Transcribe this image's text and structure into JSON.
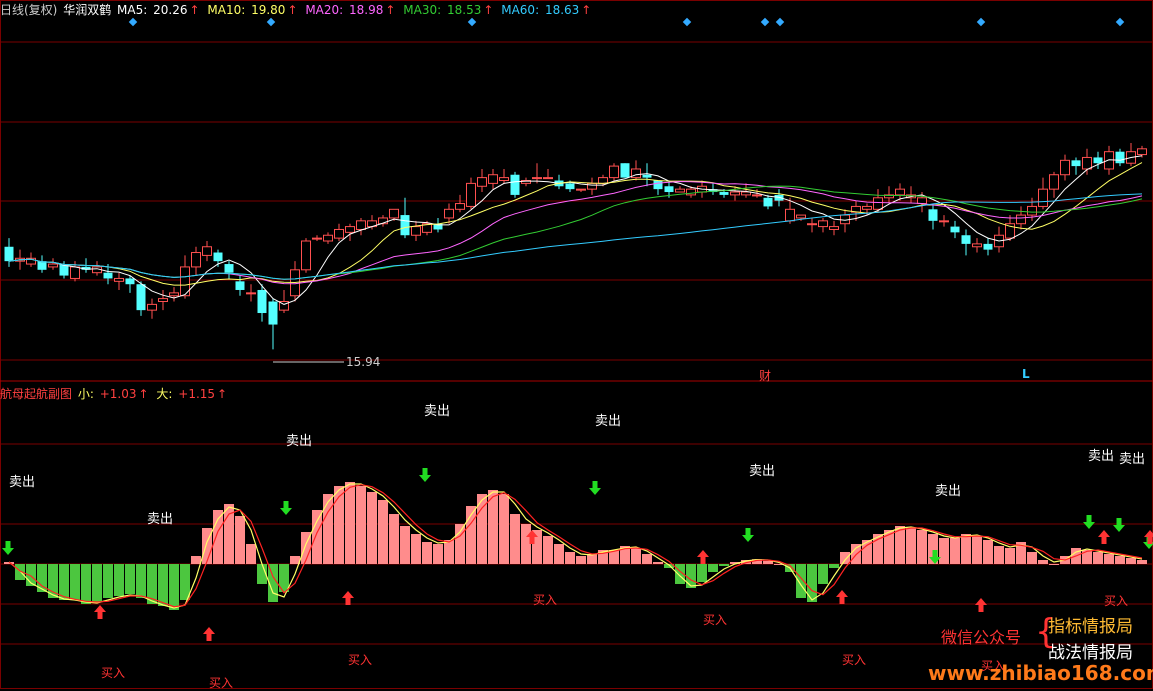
{
  "top_legend": {
    "period": "日线(复权)",
    "name": "华润双鹤",
    "ma5": {
      "label": "MA5:",
      "value": "20.26",
      "arrow": "↑",
      "color": "#ffffff"
    },
    "ma10": {
      "label": "MA10:",
      "value": "19.80",
      "arrow": "↑",
      "color": "#ffff66"
    },
    "ma20": {
      "label": "MA20:",
      "value": "18.98",
      "arrow": "↑",
      "color": "#ff66ff"
    },
    "ma30": {
      "label": "MA30:",
      "value": "18.53",
      "arrow": "↑",
      "color": "#33cc33"
    },
    "ma60": {
      "label": "MA60:",
      "value": "18.63",
      "arrow": "↑",
      "color": "#33ccff"
    }
  },
  "low_label": "15.94",
  "cai_label": "财",
  "l_label": "L",
  "bottom_legend": {
    "title": "航母起航副图",
    "small_label": "小:",
    "small_value": "+1.03",
    "big_label": "大:",
    "big_value": "+1.15",
    "arrow": "↑"
  },
  "sell_text": "卖出",
  "buy_text": "买入",
  "watermark": {
    "left": "微信公众号",
    "right1": "指标情报局",
    "right2": "战法情报局",
    "url": "www.zhibiao168.com"
  },
  "colors": {
    "up": "#ff5050",
    "down": "#54ffff",
    "pos_bar": "#ff8c8c",
    "neg_bar": "#4cc63f",
    "sell_arrow": "#22dd22",
    "buy_arrow": "#ff3333",
    "grid": "#7a0000"
  },
  "chart_data": {
    "type": "candlestick_with_oscillator",
    "candles": [
      [
        19.5,
        19.0,
        19.8,
        18.8
      ],
      [
        19.0,
        19.1,
        19.4,
        18.7
      ],
      [
        18.9,
        19.1,
        19.3,
        18.8
      ],
      [
        19.0,
        18.7,
        19.2,
        18.6
      ],
      [
        18.8,
        18.9,
        19.1,
        18.7
      ],
      [
        18.9,
        18.5,
        19.0,
        18.4
      ],
      [
        18.4,
        18.8,
        19.0,
        18.3
      ],
      [
        18.8,
        18.7,
        19.1,
        18.6
      ],
      [
        18.6,
        18.8,
        19.0,
        18.5
      ],
      [
        18.6,
        18.4,
        18.9,
        18.2
      ],
      [
        18.3,
        18.4,
        18.6,
        18.0
      ],
      [
        18.4,
        18.2,
        18.5,
        17.9
      ],
      [
        18.2,
        17.3,
        18.3,
        17.1
      ],
      [
        17.3,
        17.5,
        17.7,
        17.0
      ],
      [
        17.6,
        17.7,
        18.0,
        17.3
      ],
      [
        17.8,
        17.9,
        18.1,
        17.6
      ],
      [
        17.8,
        18.8,
        19.2,
        17.7
      ],
      [
        18.8,
        19.3,
        19.5,
        18.5
      ],
      [
        19.2,
        19.5,
        19.7,
        19.0
      ],
      [
        19.3,
        19.0,
        19.4,
        18.8
      ],
      [
        18.9,
        18.6,
        19.0,
        18.4
      ],
      [
        18.3,
        18.0,
        18.5,
        17.8
      ],
      [
        17.9,
        17.9,
        18.2,
        17.6
      ],
      [
        18.0,
        17.2,
        18.2,
        16.9
      ],
      [
        17.6,
        16.8,
        17.7,
        15.94
      ],
      [
        17.3,
        17.6,
        18.0,
        17.2
      ],
      [
        17.8,
        18.7,
        19.0,
        17.6
      ],
      [
        18.7,
        19.7,
        19.8,
        18.6
      ],
      [
        19.8,
        19.8,
        19.9,
        19.7
      ],
      [
        19.7,
        19.9,
        20.0,
        19.6
      ],
      [
        19.8,
        20.1,
        20.3,
        19.7
      ],
      [
        20.0,
        20.2,
        20.3,
        19.7
      ],
      [
        20.1,
        20.4,
        20.5,
        19.9
      ],
      [
        20.2,
        20.4,
        20.6,
        20.1
      ],
      [
        20.3,
        20.5,
        20.6,
        20.2
      ],
      [
        20.5,
        20.8,
        20.8,
        20.4
      ],
      [
        20.6,
        19.9,
        21.2,
        19.8
      ],
      [
        19.9,
        20.2,
        20.4,
        19.7
      ],
      [
        20.0,
        20.3,
        20.4,
        19.9
      ],
      [
        20.3,
        20.1,
        20.5,
        20.0
      ],
      [
        20.5,
        20.8,
        21.0,
        20.3
      ],
      [
        20.8,
        21.0,
        21.3,
        20.7
      ],
      [
        20.9,
        21.7,
        21.9,
        20.8
      ],
      [
        21.6,
        21.9,
        22.2,
        21.4
      ],
      [
        21.7,
        22.0,
        22.2,
        21.5
      ],
      [
        21.8,
        21.9,
        22.2,
        21.7
      ],
      [
        22.0,
        21.3,
        22.1,
        21.2
      ],
      [
        21.7,
        21.8,
        21.9,
        21.6
      ],
      [
        21.9,
        21.9,
        22.4,
        21.7
      ],
      [
        21.9,
        21.9,
        22.2,
        21.9
      ],
      [
        21.8,
        21.6,
        22.0,
        21.5
      ],
      [
        21.7,
        21.5,
        21.8,
        21.4
      ],
      [
        21.5,
        21.5,
        21.5,
        21.4
      ],
      [
        21.5,
        21.7,
        21.9,
        21.3
      ],
      [
        21.7,
        21.9,
        22.0,
        21.6
      ],
      [
        21.9,
        22.3,
        22.4,
        21.8
      ],
      [
        22.4,
        21.9,
        22.4,
        21.9
      ],
      [
        21.9,
        22.2,
        22.5,
        21.8
      ],
      [
        22.0,
        21.9,
        22.4,
        21.6
      ],
      [
        21.8,
        21.5,
        21.8,
        21.3
      ],
      [
        21.6,
        21.4,
        21.8,
        21.2
      ],
      [
        21.4,
        21.5,
        21.6,
        21.4
      ],
      [
        21.3,
        21.5,
        21.6,
        21.2
      ],
      [
        21.4,
        21.6,
        21.8,
        21.2
      ],
      [
        21.5,
        21.4,
        21.7,
        21.3
      ],
      [
        21.4,
        21.3,
        21.5,
        21.2
      ],
      [
        21.3,
        21.4,
        21.6,
        21.1
      ],
      [
        21.3,
        21.4,
        21.7,
        21.2
      ],
      [
        21.3,
        21.3,
        21.5,
        21.2
      ],
      [
        21.2,
        20.9,
        21.3,
        20.8
      ],
      [
        21.3,
        21.1,
        21.5,
        20.9
      ],
      [
        20.4,
        20.8,
        21.2,
        20.3
      ],
      [
        20.5,
        20.6,
        20.6,
        20.4
      ],
      [
        20.3,
        20.3,
        20.5,
        20.0
      ],
      [
        20.2,
        20.4,
        20.5,
        20.0
      ],
      [
        20.1,
        20.2,
        20.4,
        19.9
      ],
      [
        20.3,
        20.6,
        20.8,
        20.0
      ],
      [
        20.7,
        20.9,
        21.1,
        20.4
      ],
      [
        20.8,
        20.9,
        21.0,
        20.6
      ],
      [
        20.8,
        21.2,
        21.5,
        20.7
      ],
      [
        21.2,
        21.3,
        21.6,
        21.0
      ],
      [
        21.3,
        21.5,
        21.7,
        21.1
      ],
      [
        21.2,
        21.3,
        21.6,
        21.0
      ],
      [
        21.0,
        21.2,
        21.4,
        20.7
      ],
      [
        20.8,
        20.4,
        21.0,
        20.1
      ],
      [
        20.4,
        20.4,
        20.6,
        20.2
      ],
      [
        20.2,
        20.0,
        20.4,
        19.8
      ],
      [
        19.9,
        19.6,
        20.1,
        19.2
      ],
      [
        19.5,
        19.6,
        19.8,
        19.3
      ],
      [
        19.6,
        19.4,
        19.8,
        19.2
      ],
      [
        19.5,
        19.9,
        20.2,
        19.3
      ],
      [
        19.8,
        20.3,
        20.6,
        19.7
      ],
      [
        20.3,
        20.6,
        20.9,
        20.1
      ],
      [
        20.6,
        20.9,
        21.2,
        20.4
      ],
      [
        20.9,
        21.5,
        21.9,
        20.8
      ],
      [
        21.5,
        22.0,
        22.1,
        21.2
      ],
      [
        22.0,
        22.5,
        22.7,
        21.8
      ],
      [
        22.5,
        22.3,
        22.6,
        22.0
      ],
      [
        22.2,
        22.6,
        22.9,
        22.0
      ],
      [
        22.6,
        22.4,
        22.8,
        22.2
      ],
      [
        22.2,
        22.8,
        23.0,
        22.0
      ],
      [
        22.8,
        22.4,
        22.9,
        22.3
      ],
      [
        22.4,
        22.8,
        23.1,
        22.3
      ],
      [
        22.7,
        22.9,
        23.0,
        22.6
      ]
    ],
    "oscillator": [
      0.05,
      -0.4,
      -0.55,
      -0.7,
      -0.85,
      -0.9,
      -0.9,
      -1.0,
      -0.95,
      -0.85,
      -0.8,
      -0.75,
      -0.85,
      -1.0,
      -1.05,
      -1.15,
      -0.9,
      0.2,
      0.9,
      1.35,
      1.5,
      1.2,
      0.5,
      -0.5,
      -0.95,
      -0.7,
      0.2,
      0.8,
      1.35,
      1.75,
      1.95,
      2.05,
      1.95,
      1.8,
      1.6,
      1.25,
      0.95,
      0.75,
      0.55,
      0.5,
      0.6,
      1.0,
      1.45,
      1.75,
      1.85,
      1.75,
      1.25,
      1.0,
      0.85,
      0.7,
      0.5,
      0.3,
      0.2,
      0.25,
      0.35,
      0.35,
      0.45,
      0.4,
      0.25,
      0.05,
      -0.1,
      -0.5,
      -0.6,
      -0.45,
      -0.2,
      -0.05,
      0.05,
      0.1,
      0.12,
      0.08,
      0.0,
      -0.2,
      -0.85,
      -0.95,
      -0.5,
      -0.1,
      0.3,
      0.5,
      0.6,
      0.75,
      0.85,
      0.95,
      0.9,
      0.85,
      0.75,
      0.65,
      0.65,
      0.75,
      0.7,
      0.6,
      0.45,
      0.4,
      0.55,
      0.3,
      0.1,
      0.0,
      0.2,
      0.4,
      0.35,
      0.3,
      0.25,
      0.2,
      0.15,
      0.1
    ]
  }
}
